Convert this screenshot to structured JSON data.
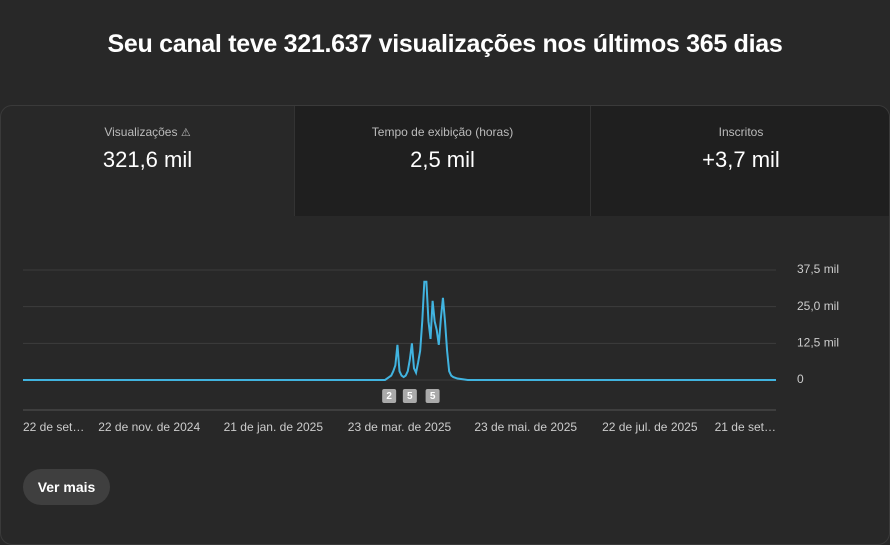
{
  "header": {
    "title": "Seu canal teve 321.637 visualizações nos últimos 365 dias"
  },
  "tabs": [
    {
      "label": "Visualizações",
      "value": "321,6 mil"
    },
    {
      "label": "Tempo de exibição (horas)",
      "value": "2,5 mil"
    },
    {
      "label": "Inscritos",
      "value": "+3,7 mil"
    }
  ],
  "chart_data": {
    "type": "line",
    "x": [
      0,
      175,
      178,
      179,
      180,
      181,
      182,
      183,
      184,
      185,
      186,
      187,
      188,
      189,
      190,
      191,
      192,
      193,
      194,
      195,
      196,
      197,
      198,
      199,
      200,
      201,
      202,
      203,
      204,
      205,
      206,
      207,
      208,
      210,
      215,
      364
    ],
    "series": [
      {
        "name": "Visualizações",
        "color": "#41b4e0",
        "values": [
          0,
          0,
          1500,
          3000,
          5000,
          12000,
          3000,
          1500,
          1000,
          1500,
          3000,
          7000,
          12500,
          4000,
          2500,
          6000,
          10000,
          20000,
          33500,
          33500,
          20000,
          14000,
          27000,
          20000,
          17000,
          12000,
          21000,
          28000,
          20000,
          10000,
          3000,
          1500,
          1000,
          500,
          0,
          0
        ]
      }
    ],
    "xlim": [
      0,
      364
    ],
    "xticks": [
      {
        "value": 0,
        "label": "22 de set…"
      },
      {
        "value": 61,
        "label": "22 de nov. de 2024"
      },
      {
        "value": 121,
        "label": "21 de jan. de 2025"
      },
      {
        "value": 182,
        "label": "23 de mar. de 2025"
      },
      {
        "value": 243,
        "label": "23 de mai. de 2025"
      },
      {
        "value": 303,
        "label": "22 de jul. de 2025"
      },
      {
        "value": 364,
        "label": "21 de set…"
      }
    ],
    "ylim": [
      0,
      37500
    ],
    "yticks": [
      0,
      {
        "value": 12500,
        "label": "12,5 mil"
      },
      {
        "value": 25000,
        "label": "25,0 mil"
      },
      {
        "value": 37500,
        "label": "37,5 mil"
      }
    ],
    "grid": true,
    "annotations": [
      {
        "x": 177,
        "label": "2"
      },
      {
        "x": 187,
        "label": "5"
      },
      {
        "x": 198,
        "label": "5"
      }
    ]
  },
  "button": "Ver mais"
}
